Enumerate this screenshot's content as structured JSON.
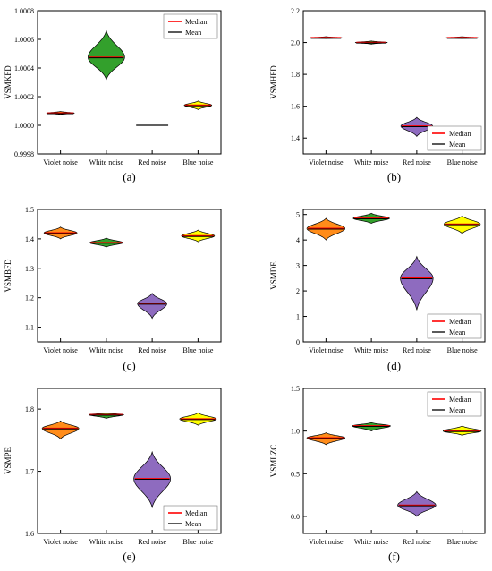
{
  "legend": {
    "median_label": "Median",
    "mean_label": "Mean"
  },
  "colors": {
    "median": "#ff0000",
    "mean": "#000000",
    "violet_noise": "#ff8c1a",
    "white_noise": "#33a02c",
    "red_noise": "#8e6bbf",
    "blue_noise": "#ffff00"
  },
  "chart_data": [
    {
      "panel_label": "(a)",
      "type": "violin",
      "categories": [
        "Violet noise",
        "White noise",
        "Red noise",
        "Blue noise"
      ],
      "ylabel": "VSMKFD",
      "ylim": [
        0.9998,
        1.0008
      ],
      "yticks": [
        "0.9998",
        "1.0000",
        "1.0002",
        "1.0004",
        "1.0006",
        "1.0008"
      ],
      "legend_position": "top-right",
      "series": [
        {
          "median": 1.000085,
          "mean": 1.000085,
          "min": 1.000075,
          "max": 1.000097,
          "half_width": 0.3
        },
        {
          "median": 1.000475,
          "mean": 1.000475,
          "min": 1.00032,
          "max": 1.00066,
          "half_width": 0.4
        },
        {
          "median": 1.0,
          "mean": 1.0,
          "min": 1.0,
          "max": 1.0,
          "half_width": 0.35
        },
        {
          "median": 1.00014,
          "mean": 1.00014,
          "min": 1.00011,
          "max": 1.00017,
          "half_width": 0.3
        }
      ]
    },
    {
      "panel_label": "(b)",
      "type": "violin",
      "categories": [
        "Violet noise",
        "White noise",
        "Red noise",
        "Blue noise"
      ],
      "ylabel": "VSMHFD",
      "ylim": [
        1.3,
        2.2
      ],
      "yticks": [
        "1.4",
        "1.6",
        "1.8",
        "2.0",
        "2.2"
      ],
      "legend_position": "bottom-right",
      "series": [
        {
          "median": 2.03,
          "mean": 2.03,
          "min": 2.025,
          "max": 2.037,
          "half_width": 0.35
        },
        {
          "median": 2.0,
          "mean": 2.0,
          "min": 1.99,
          "max": 2.01,
          "half_width": 0.35
        },
        {
          "median": 1.475,
          "mean": 1.475,
          "min": 1.41,
          "max": 1.53,
          "half_width": 0.35
        },
        {
          "median": 2.03,
          "mean": 2.03,
          "min": 2.025,
          "max": 2.037,
          "half_width": 0.35
        }
      ]
    },
    {
      "panel_label": "(c)",
      "type": "violin",
      "categories": [
        "Violet noise",
        "White noise",
        "Red noise",
        "Blue noise"
      ],
      "ylabel": "VSMBFD",
      "ylim": [
        1.05,
        1.5
      ],
      "yticks": [
        "1.1",
        "1.2",
        "1.3",
        "1.4",
        "1.5"
      ],
      "legend_position": "none",
      "series": [
        {
          "median": 1.42,
          "mean": 1.42,
          "min": 1.4,
          "max": 1.44,
          "half_width": 0.36
        },
        {
          "median": 1.387,
          "mean": 1.387,
          "min": 1.372,
          "max": 1.403,
          "half_width": 0.36
        },
        {
          "median": 1.18,
          "mean": 1.18,
          "min": 1.13,
          "max": 1.215,
          "half_width": 0.32
        },
        {
          "median": 1.41,
          "mean": 1.41,
          "min": 1.39,
          "max": 1.43,
          "half_width": 0.36
        }
      ]
    },
    {
      "panel_label": "(d)",
      "type": "violin",
      "categories": [
        "Violet noise",
        "White noise",
        "Red noise",
        "Blue noise"
      ],
      "ylabel": "VSMDE",
      "ylim": [
        0.0,
        5.2
      ],
      "yticks": [
        "0",
        "1",
        "2",
        "3",
        "4",
        "5"
      ],
      "legend_position": "bottom-right",
      "series": [
        {
          "median": 4.45,
          "mean": 4.45,
          "min": 4.0,
          "max": 4.85,
          "half_width": 0.42
        },
        {
          "median": 4.85,
          "mean": 4.85,
          "min": 4.65,
          "max": 5.05,
          "half_width": 0.4
        },
        {
          "median": 2.5,
          "mean": 2.5,
          "min": 1.25,
          "max": 3.35,
          "half_width": 0.36
        },
        {
          "median": 4.62,
          "mean": 4.62,
          "min": 4.25,
          "max": 4.95,
          "half_width": 0.4
        }
      ]
    },
    {
      "panel_label": "(e)",
      "type": "violin",
      "categories": [
        "Violet noise",
        "White noise",
        "Red noise",
        "Blue noise"
      ],
      "ylabel": "VSMPE",
      "ylim": [
        1.6,
        1.8333
      ],
      "yticks": [
        "1.6",
        "1.7",
        "1.8"
      ],
      "legend_position": "bottom-right",
      "series": [
        {
          "median": 1.769,
          "mean": 1.769,
          "min": 1.752,
          "max": 1.781,
          "half_width": 0.4
        },
        {
          "median": 1.791,
          "mean": 1.791,
          "min": 1.785,
          "max": 1.794,
          "half_width": 0.38
        },
        {
          "median": 1.688,
          "mean": 1.688,
          "min": 1.642,
          "max": 1.731,
          "half_width": 0.4
        },
        {
          "median": 1.784,
          "mean": 1.784,
          "min": 1.774,
          "max": 1.794,
          "half_width": 0.4
        }
      ]
    },
    {
      "panel_label": "(f)",
      "type": "violin",
      "categories": [
        "Violet noise",
        "White noise",
        "Red noise",
        "Blue noise"
      ],
      "ylabel": "VSMLZC",
      "ylim": [
        -0.2,
        1.5
      ],
      "yticks": [
        "0.0",
        "0.5",
        "1.0",
        "1.5"
      ],
      "legend_position": "top-right",
      "series": [
        {
          "median": 0.92,
          "mean": 0.92,
          "min": 0.84,
          "max": 0.98,
          "half_width": 0.42
        },
        {
          "median": 1.06,
          "mean": 1.06,
          "min": 1.0,
          "max": 1.1,
          "half_width": 0.42
        },
        {
          "median": 0.13,
          "mean": 0.13,
          "min": 0.0,
          "max": 0.29,
          "half_width": 0.42
        },
        {
          "median": 1.0,
          "mean": 1.0,
          "min": 0.95,
          "max": 1.06,
          "half_width": 0.42
        }
      ]
    }
  ]
}
